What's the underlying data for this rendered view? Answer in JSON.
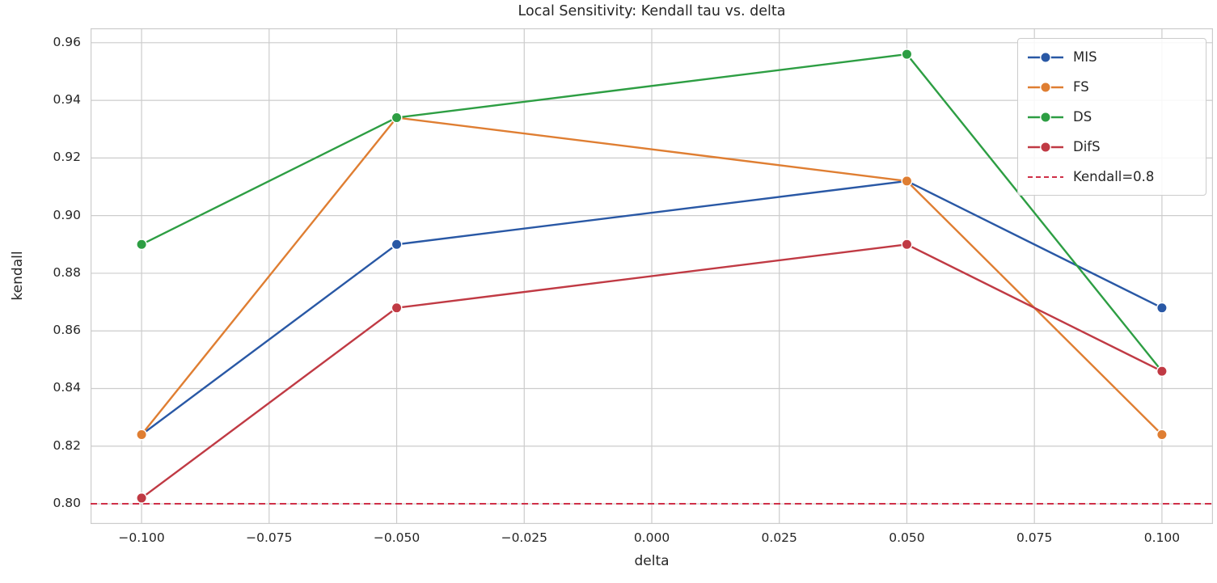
{
  "colors": {
    "background": "#ffffff",
    "grid": "#cccccc",
    "frame": "#cccccc",
    "text": "#262626"
  },
  "chart_data": {
    "type": "line",
    "title": "Local Sensitivity: Kendall tau vs. delta",
    "xlabel": "delta",
    "ylabel": "kendall",
    "x": [
      -0.1,
      -0.05,
      0.05,
      0.1
    ],
    "series": [
      {
        "name": "MIS",
        "color": "#2958a5",
        "values": [
          0.824,
          0.89,
          0.912,
          0.868
        ]
      },
      {
        "name": "FS",
        "color": "#df7e32",
        "values": [
          0.824,
          0.934,
          0.912,
          0.824
        ]
      },
      {
        "name": "DS",
        "color": "#2d9e43",
        "values": [
          0.89,
          0.934,
          0.956,
          0.846
        ]
      },
      {
        "name": "DifS",
        "color": "#c03a44",
        "values": [
          0.802,
          0.868,
          0.89,
          0.846
        ]
      }
    ],
    "reference_line": {
      "label": "Kendall=0.8",
      "y": 0.8,
      "color": "#cf3048",
      "style": "dashed"
    },
    "x_ticks": [
      -0.1,
      -0.075,
      -0.05,
      -0.025,
      0.0,
      0.025,
      0.05,
      0.075,
      0.1
    ],
    "x_tick_labels": [
      "−0.100",
      "−0.075",
      "−0.050",
      "−0.025",
      "0.000",
      "0.025",
      "0.050",
      "0.075",
      "0.100"
    ],
    "y_ticks": [
      0.8,
      0.82,
      0.84,
      0.86,
      0.88,
      0.9,
      0.92,
      0.94,
      0.96
    ],
    "y_tick_labels": [
      "0.80",
      "0.82",
      "0.84",
      "0.86",
      "0.88",
      "0.90",
      "0.92",
      "0.94",
      "0.96"
    ],
    "xlim": [
      -0.11,
      0.11
    ],
    "ylim": [
      0.793,
      0.965
    ],
    "grid": true,
    "legend_position": "upper right",
    "marker": "circle",
    "legend_entries": [
      "MIS",
      "FS",
      "DS",
      "DifS",
      "Kendall=0.8"
    ]
  }
}
